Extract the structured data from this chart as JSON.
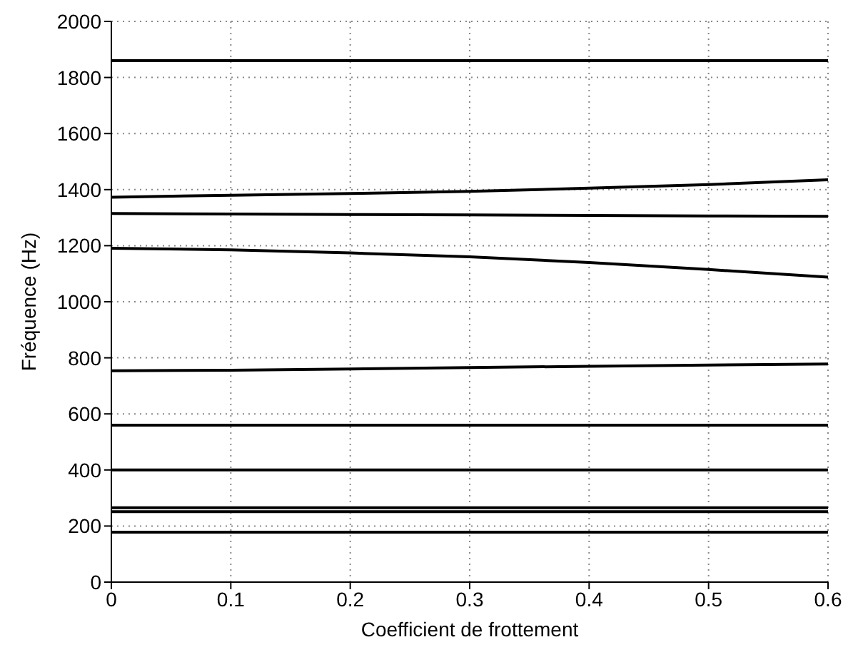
{
  "chart_data": {
    "type": "line",
    "xlabel": "Coefficient de frottement",
    "ylabel": "Fréquence (Hz)",
    "x": [
      0,
      0.1,
      0.2,
      0.3,
      0.4,
      0.5,
      0.6
    ],
    "series": [
      {
        "color": "#000000",
        "values": [
          1860,
          1860,
          1860,
          1860,
          1860,
          1860,
          1860
        ]
      },
      {
        "color": "#000000",
        "values": [
          1373,
          1380,
          1386,
          1394,
          1405,
          1418,
          1435
        ]
      },
      {
        "color": "#000000",
        "values": [
          1315,
          1313,
          1311,
          1310,
          1308,
          1306,
          1305
        ]
      },
      {
        "color": "#000000",
        "values": [
          1191,
          1185,
          1174,
          1160,
          1140,
          1115,
          1088
        ]
      },
      {
        "color": "#000000",
        "values": [
          754,
          756,
          760,
          765,
          770,
          774,
          778
        ]
      },
      {
        "color": "#000000",
        "values": [
          560,
          560,
          560,
          560,
          560,
          560,
          560
        ]
      },
      {
        "color": "#000000",
        "values": [
          400,
          400,
          400,
          400,
          400,
          400,
          400
        ]
      },
      {
        "color": "#000000",
        "values": [
          265,
          265,
          265,
          265,
          265,
          265,
          265
        ]
      },
      {
        "color": "#000000",
        "values": [
          251,
          251,
          251,
          251,
          251,
          251,
          251
        ]
      },
      {
        "color": "#000000",
        "values": [
          178,
          178,
          178,
          178,
          178,
          178,
          178
        ]
      }
    ],
    "xlim": [
      0,
      0.6
    ],
    "xticks": [
      0,
      0.1,
      0.2,
      0.3,
      0.4,
      0.5,
      0.6
    ],
    "ylim": [
      0,
      2000
    ],
    "yticks": [
      0,
      200,
      400,
      600,
      800,
      1000,
      1200,
      1400,
      1600,
      1800,
      2000
    ],
    "grid": true,
    "marker": "none",
    "line_style": "solid"
  }
}
